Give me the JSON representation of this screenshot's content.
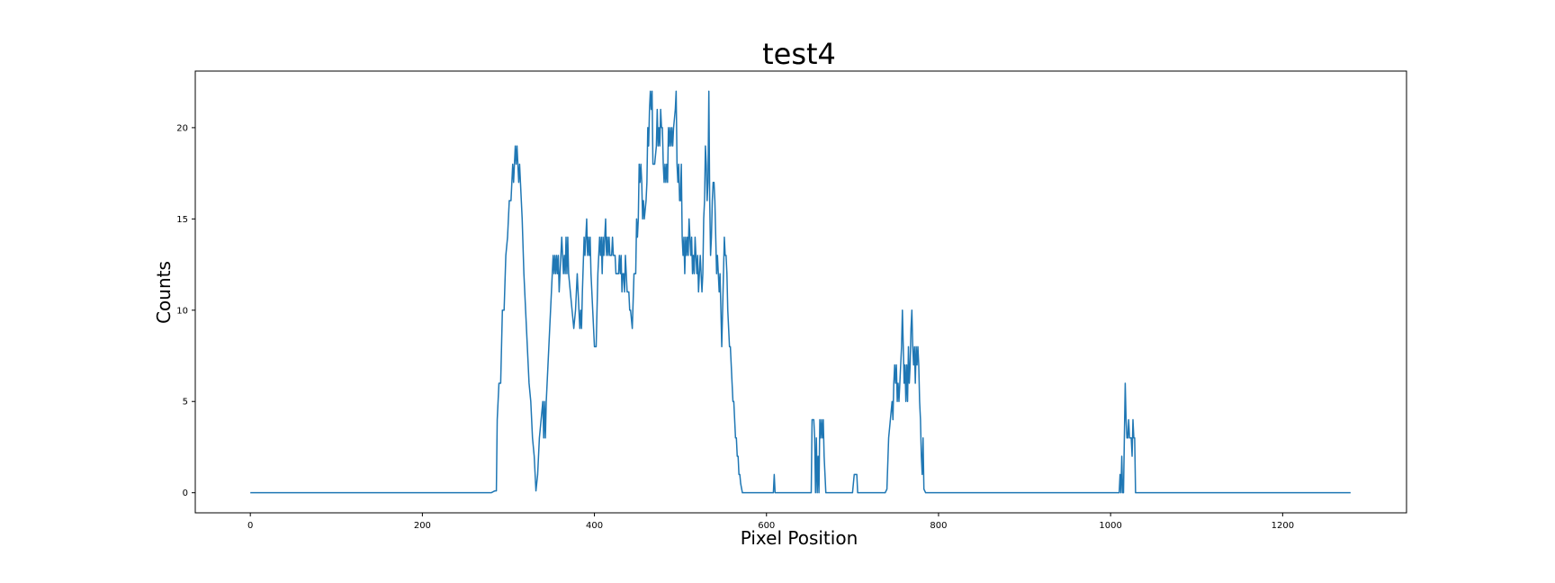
{
  "chart_data": {
    "type": "line",
    "title": "test4",
    "xlabel": "Pixel Position",
    "ylabel": "Counts",
    "xlim": [
      -64,
      1344
    ],
    "ylim": [
      -1.1,
      23.1
    ],
    "xticks": [
      0,
      200,
      400,
      600,
      800,
      1000,
      1200
    ],
    "yticks": [
      0,
      5,
      10,
      15,
      20
    ],
    "grid": false,
    "legend": "none",
    "line_color": "#1f77b4",
    "series": [
      {
        "points": [
          [
            0,
            0
          ],
          [
            280,
            0
          ],
          [
            284,
            0.1
          ],
          [
            286,
            0.1
          ],
          [
            287,
            4
          ],
          [
            289,
            6
          ],
          [
            291,
            6
          ],
          [
            293,
            10
          ],
          [
            295,
            10
          ],
          [
            297,
            13
          ],
          [
            299,
            14
          ],
          [
            301,
            16
          ],
          [
            303,
            16
          ],
          [
            305,
            18
          ],
          [
            306,
            17
          ],
          [
            307,
            18
          ],
          [
            308,
            19
          ],
          [
            309,
            18
          ],
          [
            310,
            19
          ],
          [
            311,
            18
          ],
          [
            312,
            17
          ],
          [
            313,
            18
          ],
          [
            314,
            17
          ],
          [
            316,
            15
          ],
          [
            318,
            12
          ],
          [
            320,
            10
          ],
          [
            322,
            8
          ],
          [
            324,
            6
          ],
          [
            326,
            5
          ],
          [
            328,
            3
          ],
          [
            330,
            2
          ],
          [
            332,
            0.1
          ],
          [
            334,
            1
          ],
          [
            336,
            3
          ],
          [
            338,
            4
          ],
          [
            340,
            5
          ],
          [
            341,
            3
          ],
          [
            342,
            5
          ],
          [
            343,
            3
          ],
          [
            344,
            5
          ],
          [
            346,
            7
          ],
          [
            348,
            9
          ],
          [
            350,
            11
          ],
          [
            352,
            13
          ],
          [
            353,
            12
          ],
          [
            354,
            13
          ],
          [
            355,
            12
          ],
          [
            356,
            13
          ],
          [
            357,
            12
          ],
          [
            358,
            13
          ],
          [
            359,
            11
          ],
          [
            360,
            12
          ],
          [
            362,
            14
          ],
          [
            363,
            13
          ],
          [
            364,
            12
          ],
          [
            365,
            13
          ],
          [
            366,
            12
          ],
          [
            367,
            14
          ],
          [
            368,
            12
          ],
          [
            369,
            14
          ],
          [
            370,
            12
          ],
          [
            372,
            11
          ],
          [
            374,
            10
          ],
          [
            376,
            9
          ],
          [
            378,
            10
          ],
          [
            380,
            12
          ],
          [
            381,
            11
          ],
          [
            382,
            10
          ],
          [
            383,
            9
          ],
          [
            384,
            10
          ],
          [
            385,
            9
          ],
          [
            386,
            11
          ],
          [
            388,
            14
          ],
          [
            389,
            13
          ],
          [
            390,
            14
          ],
          [
            391,
            15
          ],
          [
            392,
            13
          ],
          [
            393,
            14
          ],
          [
            394,
            13
          ],
          [
            395,
            14
          ],
          [
            396,
            12
          ],
          [
            398,
            10
          ],
          [
            400,
            8
          ],
          [
            402,
            8
          ],
          [
            404,
            12
          ],
          [
            406,
            14
          ],
          [
            407,
            13
          ],
          [
            408,
            14
          ],
          [
            409,
            12
          ],
          [
            410,
            14
          ],
          [
            411,
            13
          ],
          [
            412,
            14
          ],
          [
            413,
            15
          ],
          [
            414,
            13
          ],
          [
            415,
            14
          ],
          [
            416,
            13
          ],
          [
            417,
            14
          ],
          [
            418,
            13
          ],
          [
            420,
            13
          ],
          [
            421,
            14
          ],
          [
            422,
            13
          ],
          [
            424,
            13
          ],
          [
            425,
            12
          ],
          [
            426,
            12
          ],
          [
            428,
            12
          ],
          [
            429,
            13
          ],
          [
            430,
            12
          ],
          [
            431,
            13
          ],
          [
            432,
            11
          ],
          [
            433,
            12
          ],
          [
            434,
            12
          ],
          [
            435,
            11
          ],
          [
            436,
            13
          ],
          [
            437,
            12
          ],
          [
            438,
            11
          ],
          [
            440,
            11
          ],
          [
            441,
            10
          ],
          [
            442,
            10
          ],
          [
            444,
            9
          ],
          [
            446,
            12
          ],
          [
            448,
            12
          ],
          [
            449,
            15
          ],
          [
            450,
            14
          ],
          [
            451,
            15
          ],
          [
            452,
            18
          ],
          [
            453,
            17
          ],
          [
            454,
            18
          ],
          [
            455,
            17
          ],
          [
            456,
            15
          ],
          [
            457,
            16
          ],
          [
            458,
            15
          ],
          [
            460,
            16
          ],
          [
            461,
            17
          ],
          [
            462,
            20
          ],
          [
            463,
            19
          ],
          [
            464,
            21
          ],
          [
            465,
            22
          ],
          [
            466,
            21
          ],
          [
            467,
            22
          ],
          [
            468,
            18
          ],
          [
            470,
            18
          ],
          [
            472,
            19
          ],
          [
            473,
            21
          ],
          [
            474,
            19
          ],
          [
            475,
            20
          ],
          [
            476,
            19
          ],
          [
            477,
            21
          ],
          [
            478,
            20
          ],
          [
            479,
            20
          ],
          [
            480,
            18
          ],
          [
            481,
            17
          ],
          [
            482,
            18
          ],
          [
            483,
            17
          ],
          [
            484,
            18
          ],
          [
            485,
            17
          ],
          [
            486,
            20
          ],
          [
            487,
            19
          ],
          [
            488,
            20
          ],
          [
            489,
            19
          ],
          [
            490,
            20
          ],
          [
            491,
            19
          ],
          [
            492,
            20
          ],
          [
            494,
            21
          ],
          [
            495,
            22
          ],
          [
            496,
            18
          ],
          [
            497,
            17
          ],
          [
            498,
            18
          ],
          [
            499,
            16
          ],
          [
            500,
            16
          ],
          [
            501,
            18
          ],
          [
            502,
            14
          ],
          [
            503,
            13
          ],
          [
            504,
            14
          ],
          [
            505,
            12
          ],
          [
            506,
            14
          ],
          [
            507,
            13
          ],
          [
            508,
            14
          ],
          [
            509,
            13
          ],
          [
            510,
            15
          ],
          [
            511,
            14
          ],
          [
            512,
            13
          ],
          [
            513,
            14
          ],
          [
            514,
            12
          ],
          [
            515,
            13
          ],
          [
            516,
            12
          ],
          [
            517,
            14
          ],
          [
            518,
            13
          ],
          [
            519,
            12
          ],
          [
            520,
            13
          ],
          [
            521,
            11
          ],
          [
            522,
            12
          ],
          [
            523,
            13
          ],
          [
            524,
            12
          ],
          [
            525,
            11
          ],
          [
            526,
            12
          ],
          [
            527,
            15
          ],
          [
            528,
            16
          ],
          [
            529,
            19
          ],
          [
            530,
            18
          ],
          [
            531,
            16
          ],
          [
            532,
            17
          ],
          [
            533,
            22
          ],
          [
            534,
            16
          ],
          [
            535,
            13
          ],
          [
            536,
            14
          ],
          [
            537,
            16
          ],
          [
            538,
            17
          ],
          [
            539,
            17
          ],
          [
            540,
            16
          ],
          [
            541,
            14
          ],
          [
            542,
            12
          ],
          [
            543,
            13
          ],
          [
            544,
            12
          ],
          [
            545,
            11
          ],
          [
            546,
            12
          ],
          [
            547,
            10
          ],
          [
            548,
            8
          ],
          [
            549,
            10
          ],
          [
            550,
            12
          ],
          [
            551,
            14
          ],
          [
            552,
            13
          ],
          [
            553,
            13
          ],
          [
            554,
            12
          ],
          [
            555,
            10
          ],
          [
            556,
            9
          ],
          [
            557,
            8
          ],
          [
            558,
            8
          ],
          [
            559,
            7
          ],
          [
            560,
            6
          ],
          [
            561,
            5
          ],
          [
            562,
            5
          ],
          [
            563,
            4
          ],
          [
            564,
            3
          ],
          [
            565,
            3
          ],
          [
            566,
            2
          ],
          [
            567,
            2
          ],
          [
            568,
            1
          ],
          [
            569,
            1
          ],
          [
            570,
            0.5
          ],
          [
            572,
            0
          ],
          [
            608,
            0
          ],
          [
            609,
            1
          ],
          [
            610,
            0
          ],
          [
            650,
            0
          ],
          [
            652,
            0
          ],
          [
            653,
            4
          ],
          [
            654,
            4
          ],
          [
            655,
            4
          ],
          [
            656,
            3
          ],
          [
            657,
            0
          ],
          [
            658,
            3
          ],
          [
            659,
            0
          ],
          [
            660,
            2
          ],
          [
            661,
            0
          ],
          [
            662,
            4
          ],
          [
            663,
            3
          ],
          [
            664,
            4
          ],
          [
            665,
            3
          ],
          [
            666,
            4
          ],
          [
            667,
            2
          ],
          [
            668,
            1
          ],
          [
            669,
            0
          ],
          [
            671,
            0
          ],
          [
            700,
            0
          ],
          [
            702,
            1
          ],
          [
            705,
            1
          ],
          [
            706,
            0
          ],
          [
            738,
            0
          ],
          [
            740,
            0.2
          ],
          [
            742,
            3
          ],
          [
            744,
            4
          ],
          [
            746,
            5
          ],
          [
            747,
            4
          ],
          [
            748,
            6
          ],
          [
            749,
            7
          ],
          [
            750,
            6
          ],
          [
            751,
            7
          ],
          [
            752,
            5
          ],
          [
            753,
            6
          ],
          [
            754,
            5
          ],
          [
            755,
            6
          ],
          [
            756,
            7
          ],
          [
            757,
            8
          ],
          [
            758,
            10
          ],
          [
            759,
            8
          ],
          [
            760,
            6
          ],
          [
            761,
            7
          ],
          [
            762,
            5
          ],
          [
            763,
            7
          ],
          [
            764,
            5
          ],
          [
            765,
            8
          ],
          [
            766,
            6
          ],
          [
            767,
            7
          ],
          [
            768,
            9
          ],
          [
            769,
            10
          ],
          [
            770,
            8
          ],
          [
            771,
            7
          ],
          [
            772,
            8
          ],
          [
            773,
            6
          ],
          [
            774,
            8
          ],
          [
            775,
            7
          ],
          [
            776,
            8
          ],
          [
            777,
            7
          ],
          [
            778,
            5
          ],
          [
            779,
            4
          ],
          [
            780,
            2
          ],
          [
            781,
            1
          ],
          [
            782,
            3
          ],
          [
            783,
            0.2
          ],
          [
            785,
            0
          ],
          [
            1010,
            0
          ],
          [
            1011,
            1
          ],
          [
            1012,
            0
          ],
          [
            1013,
            2
          ],
          [
            1014,
            0
          ],
          [
            1015,
            0
          ],
          [
            1016,
            3
          ],
          [
            1017,
            6
          ],
          [
            1018,
            4
          ],
          [
            1019,
            3
          ],
          [
            1020,
            3
          ],
          [
            1021,
            4
          ],
          [
            1022,
            3
          ],
          [
            1023,
            3
          ],
          [
            1024,
            3
          ],
          [
            1025,
            2
          ],
          [
            1026,
            4
          ],
          [
            1027,
            3
          ],
          [
            1028,
            3
          ],
          [
            1029,
            0
          ],
          [
            1030,
            0
          ],
          [
            1279,
            0
          ]
        ]
      }
    ]
  }
}
